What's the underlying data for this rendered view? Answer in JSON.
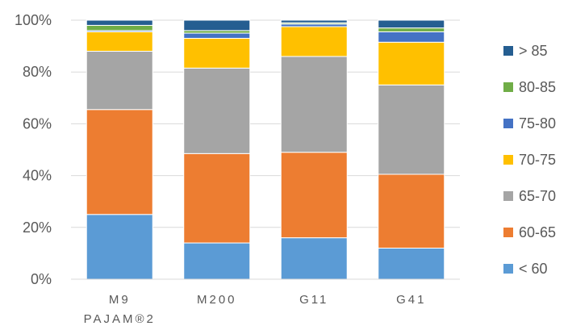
{
  "chart_data": {
    "type": "bar",
    "stacked": true,
    "percent": true,
    "categories": [
      [
        "M9",
        "PAJAM®2"
      ],
      [
        "M200"
      ],
      [
        "G11"
      ],
      [
        "G41"
      ]
    ],
    "yticks": [
      "0%",
      "20%",
      "40%",
      "60%",
      "80%",
      "100%"
    ],
    "ylim": [
      0,
      100
    ],
    "grid": true,
    "legend_position": "right",
    "series": [
      {
        "name": "< 60",
        "color": "#5b9bd5",
        "values": [
          25,
          14,
          16,
          12
        ]
      },
      {
        "name": "60-65",
        "color": "#ed7d31",
        "values": [
          40.5,
          34.5,
          33,
          28.5
        ]
      },
      {
        "name": "65-70",
        "color": "#a5a5a5",
        "values": [
          22.5,
          33,
          37,
          34.5
        ]
      },
      {
        "name": "70-75",
        "color": "#ffc000",
        "values": [
          7.5,
          11.5,
          11.5,
          16.5
        ]
      },
      {
        "name": "75-80",
        "color": "#4472c4",
        "values": [
          0.5,
          2,
          1,
          4
        ]
      },
      {
        "name": "80-85",
        "color": "#70ad47",
        "values": [
          2,
          1,
          0.5,
          1.5
        ]
      },
      {
        "name": "> 85",
        "color": "#255e91",
        "values": [
          2,
          4,
          1,
          3
        ]
      }
    ]
  }
}
